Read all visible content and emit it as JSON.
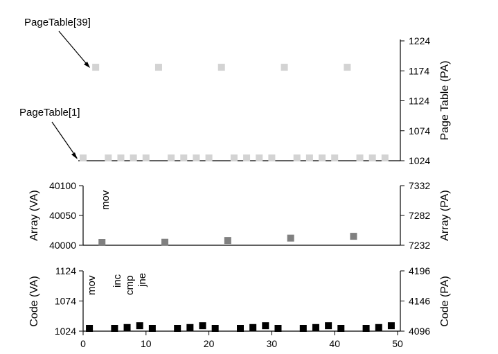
{
  "chart_data": [
    {
      "type": "scatter",
      "id": "pagetable",
      "right_ylabel": "Page Table (PA)",
      "ylim": [
        1024,
        1224
      ],
      "right_ticks": [
        1024,
        1074,
        1124,
        1174,
        1224
      ],
      "marker_color": "#d3d3d3",
      "series": [
        {
          "points": [
            [
              0,
              1024
            ],
            [
              2,
              1180
            ],
            [
              4,
              1024
            ],
            [
              6,
              1024
            ],
            [
              8,
              1024
            ],
            [
              10,
              1024
            ],
            [
              12,
              1180
            ],
            [
              14,
              1024
            ],
            [
              16,
              1024
            ],
            [
              18,
              1024
            ],
            [
              20,
              1024
            ],
            [
              22,
              1180
            ],
            [
              24,
              1024
            ],
            [
              26,
              1024
            ],
            [
              28,
              1024
            ],
            [
              30,
              1024
            ],
            [
              32,
              1180
            ],
            [
              34,
              1024
            ],
            [
              36,
              1024
            ],
            [
              38,
              1024
            ],
            [
              40,
              1024
            ],
            [
              42,
              1180
            ],
            [
              44,
              1024
            ],
            [
              46,
              1024
            ],
            [
              48,
              1024
            ]
          ]
        }
      ],
      "annotations": [
        "PageTable[39]",
        "PageTable[1]"
      ]
    },
    {
      "type": "scatter",
      "id": "array",
      "left_ylabel": "Array (VA)",
      "right_ylabel": "Array (PA)",
      "ylim": [
        40000,
        40100
      ],
      "left_ticks": [
        40000,
        40050,
        40100
      ],
      "right_ticks": [
        7232,
        7282,
        7332
      ],
      "marker_color": "#808080",
      "series": [
        {
          "points": [
            [
              3,
              40000
            ],
            [
              13,
              40005
            ],
            [
              23,
              40008
            ],
            [
              33,
              40012
            ],
            [
              43,
              40015
            ]
          ]
        }
      ],
      "annotations": [
        "mov"
      ]
    },
    {
      "type": "scatter",
      "id": "code",
      "left_ylabel": "Code (VA)",
      "right_ylabel": "Code (PA)",
      "ylim": [
        1024,
        1124
      ],
      "left_ticks": [
        1024,
        1074,
        1124
      ],
      "right_ticks": [
        4096,
        4146,
        4196
      ],
      "marker_color": "#000000",
      "series": [
        {
          "points": [
            [
              1,
              1024
            ],
            [
              5,
              1027
            ],
            [
              7,
              1030
            ],
            [
              9,
              1033
            ],
            [
              11,
              1024
            ],
            [
              15,
              1027
            ],
            [
              17,
              1030
            ],
            [
              19,
              1033
            ],
            [
              21,
              1024
            ],
            [
              25,
              1027
            ],
            [
              27,
              1030
            ],
            [
              29,
              1033
            ],
            [
              31,
              1024
            ],
            [
              35,
              1027
            ],
            [
              37,
              1030
            ],
            [
              39,
              1033
            ],
            [
              41,
              1024
            ],
            [
              45,
              1027
            ],
            [
              47,
              1030
            ],
            [
              49,
              1033
            ]
          ]
        }
      ],
      "annotations": [
        "mov",
        "inc",
        "cmp",
        "jne"
      ]
    }
  ],
  "x_axis": {
    "xlim": [
      0,
      50
    ],
    "ticks": [
      0,
      10,
      20,
      30,
      40,
      50
    ]
  }
}
